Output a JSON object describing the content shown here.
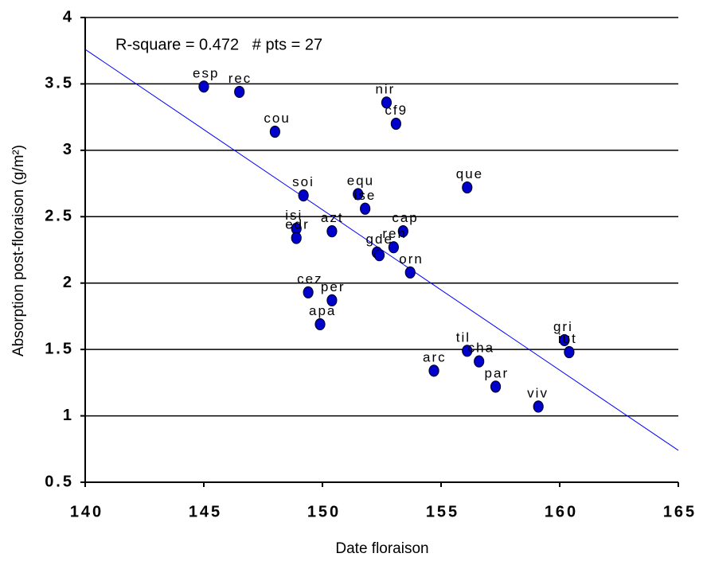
{
  "chart_data": {
    "type": "scatter",
    "annotation": "R-square = 0.472   # pts = 27",
    "xlabel": "Date floraison",
    "ylabel": "Absorption post-floraison (g/m²)",
    "labels": [
      "esp",
      "rec",
      "cou",
      "nir",
      "cf9",
      "que",
      "soi",
      "equ",
      "ise",
      "isi",
      "edr",
      "azt",
      "cap",
      "ren",
      "gde",
      null,
      "orn",
      "cez",
      "per",
      "apa",
      "til",
      "cha",
      "arc",
      "par",
      "viv",
      "gri",
      "iut"
    ],
    "x": [
      145.0,
      146.5,
      148.0,
      152.7,
      153.1,
      156.1,
      149.2,
      151.5,
      151.8,
      148.9,
      148.9,
      150.4,
      153.4,
      153.0,
      152.3,
      152.4,
      153.7,
      149.4,
      150.4,
      149.9,
      156.1,
      156.6,
      154.7,
      157.3,
      159.1,
      160.2,
      160.4
    ],
    "values": [
      3.48,
      3.44,
      3.14,
      3.36,
      3.2,
      2.72,
      2.66,
      2.67,
      2.56,
      2.41,
      2.34,
      2.39,
      2.39,
      2.27,
      2.23,
      2.21,
      2.08,
      1.93,
      1.87,
      1.69,
      1.49,
      1.41,
      1.34,
      1.22,
      1.07,
      1.57,
      1.48
    ],
    "color": "#0000cc",
    "trendline": {
      "x": [
        140,
        165
      ],
      "values": [
        3.76,
        0.74
      ],
      "color": "#0000ff"
    },
    "xlim": [
      140,
      165
    ],
    "xticks": [
      140,
      145,
      150,
      155,
      160,
      165
    ],
    "ylim": [
      0.5,
      4
    ],
    "yticks": [
      0.5,
      1,
      1.5,
      2,
      2.5,
      3,
      3.5,
      4
    ],
    "grid": true
  }
}
